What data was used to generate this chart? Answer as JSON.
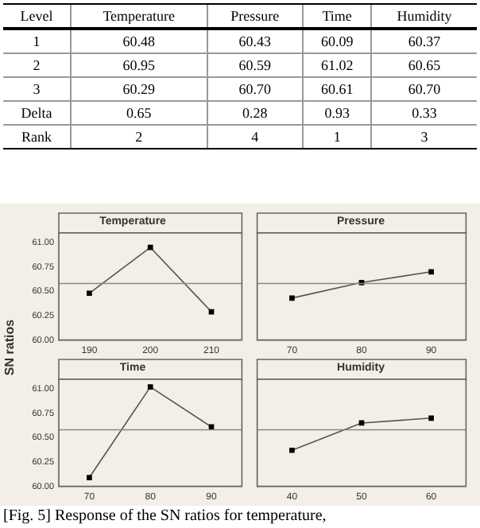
{
  "chart_data": [
    {
      "type": "other",
      "categories": [
        "Level",
        "Temperature",
        "Pressure",
        "Time",
        "Humidity"
      ],
      "cell_labels": [
        [
          "1",
          "60.48",
          "60.43",
          "60.09",
          "60.37"
        ],
        [
          "2",
          "60.95",
          "60.59",
          "61.02",
          "60.65"
        ],
        [
          "3",
          "60.29",
          "60.70",
          "60.61",
          "60.70"
        ],
        [
          "Delta",
          "0.65",
          "0.28",
          "0.93",
          "0.33"
        ],
        [
          "Rank",
          "2",
          "4",
          "1",
          "3"
        ]
      ],
      "annotations": [
        "[Fig. 5] Response of the SN ratios for temperature,"
      ]
    },
    {
      "type": "line",
      "title": "Temperature",
      "ylabel": "SN ratios",
      "categories": [
        "190",
        "200",
        "210"
      ],
      "values": [
        60.48,
        60.95,
        60.29
      ],
      "color": "#555555",
      "marker": "square",
      "ylim": [
        60,
        61.1
      ],
      "yticks": [
        {
          "value": 60,
          "label": "60.00"
        },
        {
          "value": 60.25,
          "label": "60.25"
        },
        {
          "value": 60.5,
          "label": "60.50"
        },
        {
          "value": 60.75,
          "label": "60.75"
        },
        {
          "value": 61,
          "label": "61.00"
        }
      ],
      "ref_lines": [
        {
          "axis": "y",
          "value": 60.58,
          "color": "#888888"
        }
      ],
      "grid": false
    },
    {
      "type": "line",
      "title": "Pressure",
      "categories": [
        "70",
        "80",
        "90"
      ],
      "values": [
        60.43,
        60.59,
        60.7
      ],
      "color": "#555555",
      "marker": "square",
      "ylim": [
        60,
        61.1
      ],
      "ref_lines": [
        {
          "axis": "y",
          "value": 60.58,
          "color": "#888888"
        }
      ],
      "grid": false,
      "tick_labels": "x"
    },
    {
      "type": "line",
      "title": "Time",
      "categories": [
        "70",
        "80",
        "90"
      ],
      "values": [
        60.09,
        61.02,
        60.61
      ],
      "color": "#555555",
      "marker": "square",
      "ylim": [
        60,
        61.1
      ],
      "yticks": [
        {
          "value": 60,
          "label": "60.00"
        },
        {
          "value": 60.25,
          "label": "60.25"
        },
        {
          "value": 60.5,
          "label": "60.50"
        },
        {
          "value": 60.75,
          "label": "60.75"
        },
        {
          "value": 61,
          "label": "61.00"
        }
      ],
      "ref_lines": [
        {
          "axis": "y",
          "value": 60.58,
          "color": "#888888"
        }
      ],
      "grid": false
    },
    {
      "type": "line",
      "title": "Humidity",
      "categories": [
        "40",
        "50",
        "60"
      ],
      "values": [
        60.37,
        60.65,
        60.7
      ],
      "color": "#555555",
      "marker": "square",
      "ylim": [
        60,
        61.1
      ],
      "ref_lines": [
        {
          "axis": "y",
          "value": 60.58,
          "color": "#888888"
        }
      ],
      "grid": false,
      "tick_labels": "x"
    }
  ]
}
